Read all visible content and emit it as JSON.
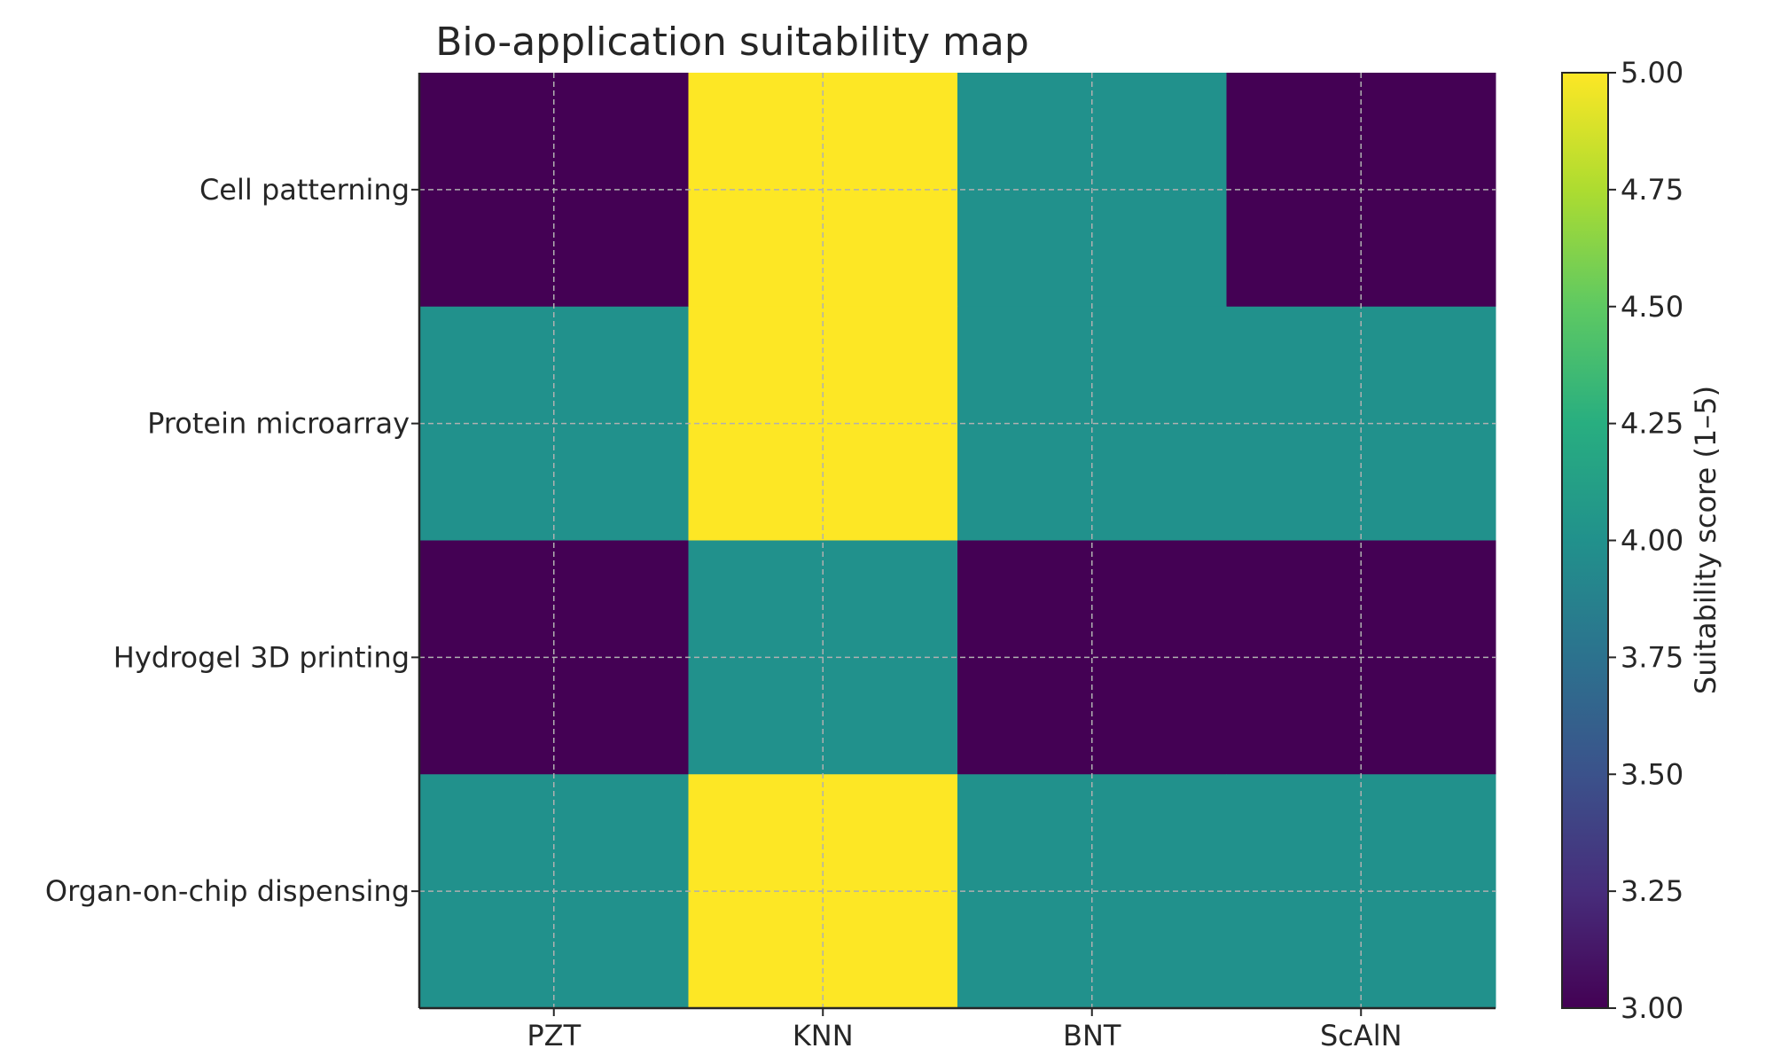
{
  "chart_data": {
    "type": "heatmap",
    "title": "Bio-application suitability map",
    "x_categories": [
      "PZT",
      "KNN",
      "BNT",
      "ScAlN"
    ],
    "y_categories": [
      "Cell patterning",
      "Protein microarray",
      "Hydrogel 3D printing",
      "Organ-on-chip dispensing"
    ],
    "values": [
      [
        3,
        5,
        4,
        3
      ],
      [
        4,
        5,
        4,
        4
      ],
      [
        3,
        4,
        3,
        3
      ],
      [
        4,
        5,
        4,
        4
      ]
    ],
    "colorbar": {
      "label": "Suitability score (1–5)",
      "range": [
        3.0,
        5.0
      ],
      "ticks": [
        "3.00",
        "3.25",
        "3.50",
        "3.75",
        "4.00",
        "4.25",
        "4.50",
        "4.75",
        "5.00"
      ],
      "colormap": "viridis"
    },
    "grid": true
  }
}
